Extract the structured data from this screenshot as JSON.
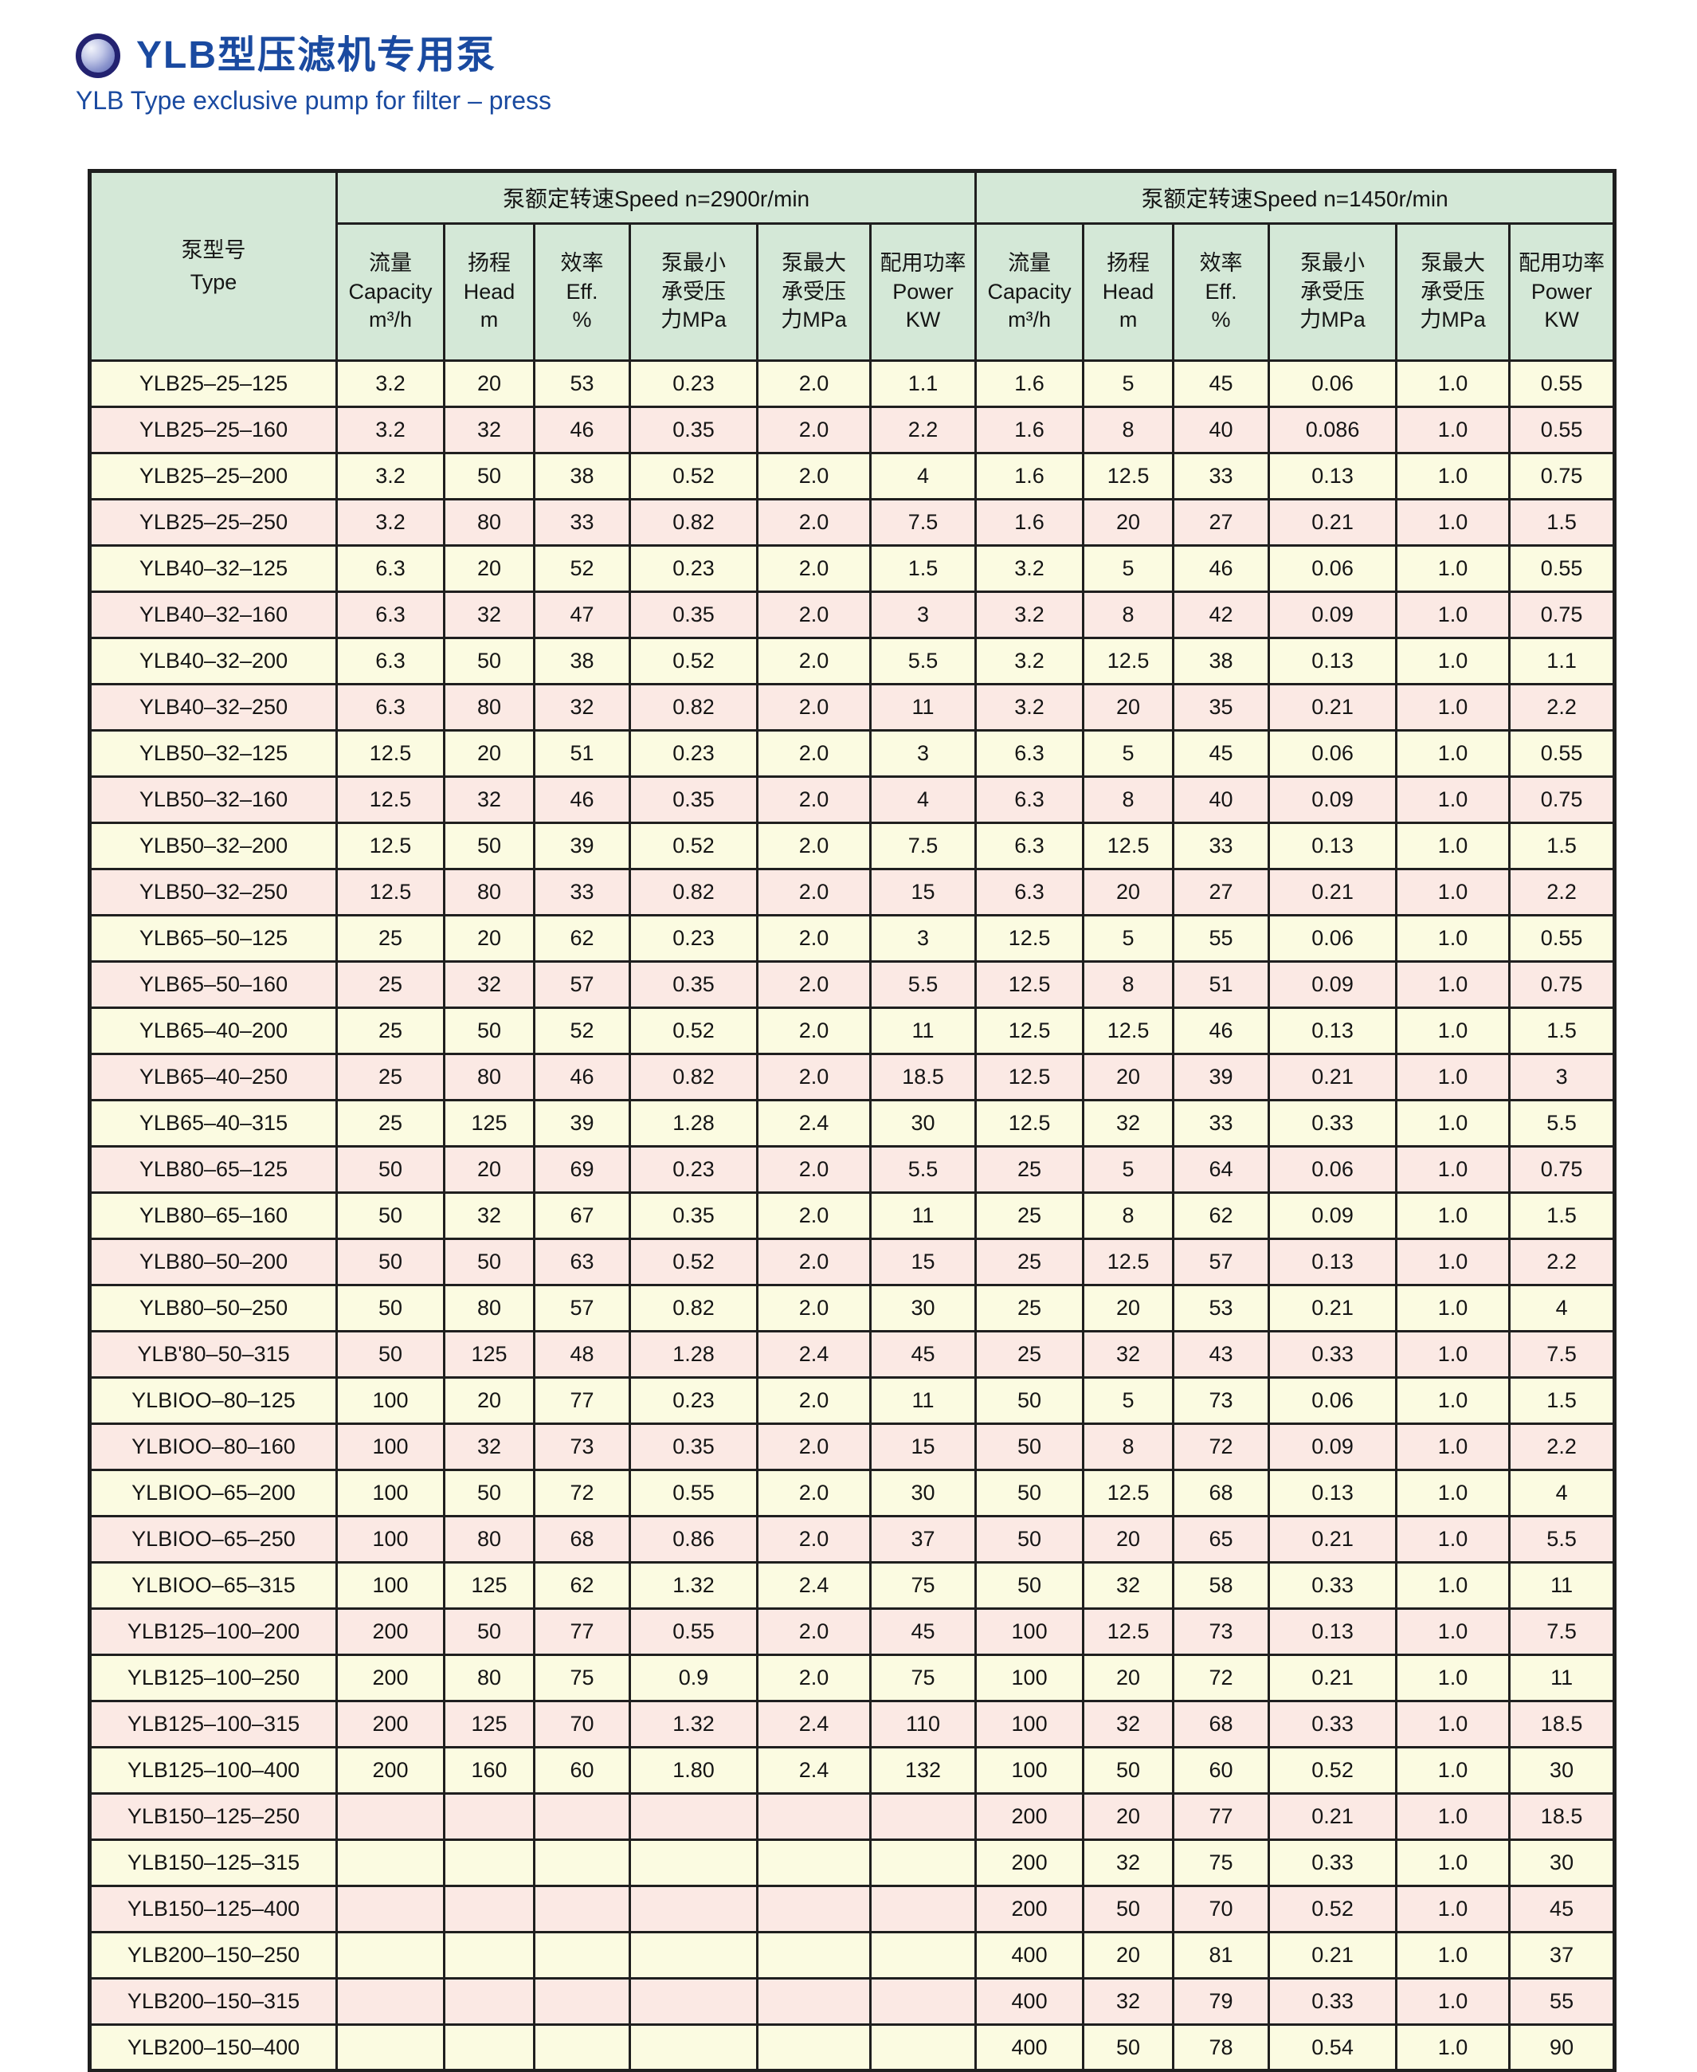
{
  "header": {
    "title_zh": "YLB型压滤机专用泵",
    "title_en": "YLB Type exclusive pump for filter – press"
  },
  "colors": {
    "title_blue": "#1a4aa0",
    "header_green": "#d4e8d7",
    "row_cream": "#fbfbe1",
    "row_pink": "#fbe9e4",
    "border_dark": "#1f1f1f",
    "text_ink": "#151515"
  },
  "table": {
    "type_header": {
      "zh": "泵型号",
      "en": "Type"
    },
    "speed_groups": [
      {
        "rpm": "2900",
        "label": "泵额定转速Speed n=2900r/min"
      },
      {
        "rpm": "1450",
        "label": "泵额定转速Speed n=1450r/min"
      }
    ],
    "columns": [
      {
        "key": "capacity",
        "lines": [
          "流量",
          "Capacity",
          "m³/h"
        ]
      },
      {
        "key": "head",
        "lines": [
          "扬程",
          "Head",
          "m"
        ]
      },
      {
        "key": "efficiency",
        "lines": [
          "效率",
          "Eff.",
          "%"
        ]
      },
      {
        "key": "min-pressure",
        "lines": [
          "泵最小",
          "承受压",
          "力MPa"
        ]
      },
      {
        "key": "max-pressure",
        "lines": [
          "泵最大",
          "承受压",
          "力MPa"
        ]
      },
      {
        "key": "power",
        "lines": [
          "配用功率",
          "Power",
          "KW"
        ]
      }
    ],
    "rows": [
      {
        "type": "YLB25–25–125",
        "n2900": [
          "3.2",
          "20",
          "53",
          "0.23",
          "2.0",
          "1.1"
        ],
        "n1450": [
          "1.6",
          "5",
          "45",
          "0.06",
          "1.0",
          "0.55"
        ]
      },
      {
        "type": "YLB25–25–160",
        "n2900": [
          "3.2",
          "32",
          "46",
          "0.35",
          "2.0",
          "2.2"
        ],
        "n1450": [
          "1.6",
          "8",
          "40",
          "0.086",
          "1.0",
          "0.55"
        ]
      },
      {
        "type": "YLB25–25–200",
        "n2900": [
          "3.2",
          "50",
          "38",
          "0.52",
          "2.0",
          "4"
        ],
        "n1450": [
          "1.6",
          "12.5",
          "33",
          "0.13",
          "1.0",
          "0.75"
        ]
      },
      {
        "type": "YLB25–25–250",
        "n2900": [
          "3.2",
          "80",
          "33",
          "0.82",
          "2.0",
          "7.5"
        ],
        "n1450": [
          "1.6",
          "20",
          "27",
          "0.21",
          "1.0",
          "1.5"
        ]
      },
      {
        "type": "YLB40–32–125",
        "n2900": [
          "6.3",
          "20",
          "52",
          "0.23",
          "2.0",
          "1.5"
        ],
        "n1450": [
          "3.2",
          "5",
          "46",
          "0.06",
          "1.0",
          "0.55"
        ]
      },
      {
        "type": "YLB40–32–160",
        "n2900": [
          "6.3",
          "32",
          "47",
          "0.35",
          "2.0",
          "3"
        ],
        "n1450": [
          "3.2",
          "8",
          "42",
          "0.09",
          "1.0",
          "0.75"
        ]
      },
      {
        "type": "YLB40–32–200",
        "n2900": [
          "6.3",
          "50",
          "38",
          "0.52",
          "2.0",
          "5.5"
        ],
        "n1450": [
          "3.2",
          "12.5",
          "38",
          "0.13",
          "1.0",
          "1.1"
        ]
      },
      {
        "type": "YLB40–32–250",
        "n2900": [
          "6.3",
          "80",
          "32",
          "0.82",
          "2.0",
          "11"
        ],
        "n1450": [
          "3.2",
          "20",
          "35",
          "0.21",
          "1.0",
          "2.2"
        ]
      },
      {
        "type": "YLB50–32–125",
        "n2900": [
          "12.5",
          "20",
          "51",
          "0.23",
          "2.0",
          "3"
        ],
        "n1450": [
          "6.3",
          "5",
          "45",
          "0.06",
          "1.0",
          "0.55"
        ]
      },
      {
        "type": "YLB50–32–160",
        "n2900": [
          "12.5",
          "32",
          "46",
          "0.35",
          "2.0",
          "4"
        ],
        "n1450": [
          "6.3",
          "8",
          "40",
          "0.09",
          "1.0",
          "0.75"
        ]
      },
      {
        "type": "YLB50–32–200",
        "n2900": [
          "12.5",
          "50",
          "39",
          "0.52",
          "2.0",
          "7.5"
        ],
        "n1450": [
          "6.3",
          "12.5",
          "33",
          "0.13",
          "1.0",
          "1.5"
        ]
      },
      {
        "type": "YLB50–32–250",
        "n2900": [
          "12.5",
          "80",
          "33",
          "0.82",
          "2.0",
          "15"
        ],
        "n1450": [
          "6.3",
          "20",
          "27",
          "0.21",
          "1.0",
          "2.2"
        ]
      },
      {
        "type": "YLB65–50–125",
        "n2900": [
          "25",
          "20",
          "62",
          "0.23",
          "2.0",
          "3"
        ],
        "n1450": [
          "12.5",
          "5",
          "55",
          "0.06",
          "1.0",
          "0.55"
        ]
      },
      {
        "type": "YLB65–50–160",
        "n2900": [
          "25",
          "32",
          "57",
          "0.35",
          "2.0",
          "5.5"
        ],
        "n1450": [
          "12.5",
          "8",
          "51",
          "0.09",
          "1.0",
          "0.75"
        ]
      },
      {
        "type": "YLB65–40–200",
        "n2900": [
          "25",
          "50",
          "52",
          "0.52",
          "2.0",
          "11"
        ],
        "n1450": [
          "12.5",
          "12.5",
          "46",
          "0.13",
          "1.0",
          "1.5"
        ]
      },
      {
        "type": "YLB65–40–250",
        "n2900": [
          "25",
          "80",
          "46",
          "0.82",
          "2.0",
          "18.5"
        ],
        "n1450": [
          "12.5",
          "20",
          "39",
          "0.21",
          "1.0",
          "3"
        ]
      },
      {
        "type": "YLB65–40–315",
        "n2900": [
          "25",
          "125",
          "39",
          "1.28",
          "2.4",
          "30"
        ],
        "n1450": [
          "12.5",
          "32",
          "33",
          "0.33",
          "1.0",
          "5.5"
        ]
      },
      {
        "type": "YLB80–65–125",
        "n2900": [
          "50",
          "20",
          "69",
          "0.23",
          "2.0",
          "5.5"
        ],
        "n1450": [
          "25",
          "5",
          "64",
          "0.06",
          "1.0",
          "0.75"
        ]
      },
      {
        "type": "YLB80–65–160",
        "n2900": [
          "50",
          "32",
          "67",
          "0.35",
          "2.0",
          "11"
        ],
        "n1450": [
          "25",
          "8",
          "62",
          "0.09",
          "1.0",
          "1.5"
        ]
      },
      {
        "type": "YLB80–50–200",
        "n2900": [
          "50",
          "50",
          "63",
          "0.52",
          "2.0",
          "15"
        ],
        "n1450": [
          "25",
          "12.5",
          "57",
          "0.13",
          "1.0",
          "2.2"
        ]
      },
      {
        "type": "YLB80–50–250",
        "n2900": [
          "50",
          "80",
          "57",
          "0.82",
          "2.0",
          "30"
        ],
        "n1450": [
          "25",
          "20",
          "53",
          "0.21",
          "1.0",
          "4"
        ]
      },
      {
        "type": "YLB'80–50–315",
        "n2900": [
          "50",
          "125",
          "48",
          "1.28",
          "2.4",
          "45"
        ],
        "n1450": [
          "25",
          "32",
          "43",
          "0.33",
          "1.0",
          "7.5"
        ]
      },
      {
        "type": "YLBIOO–80–125",
        "n2900": [
          "100",
          "20",
          "77",
          "0.23",
          "2.0",
          "11"
        ],
        "n1450": [
          "50",
          "5",
          "73",
          "0.06",
          "1.0",
          "1.5"
        ]
      },
      {
        "type": "YLBIOO–80–160",
        "n2900": [
          "100",
          "32",
          "73",
          "0.35",
          "2.0",
          "15"
        ],
        "n1450": [
          "50",
          "8",
          "72",
          "0.09",
          "1.0",
          "2.2"
        ]
      },
      {
        "type": "YLBIOO–65–200",
        "n2900": [
          "100",
          "50",
          "72",
          "0.55",
          "2.0",
          "30"
        ],
        "n1450": [
          "50",
          "12.5",
          "68",
          "0.13",
          "1.0",
          "4"
        ]
      },
      {
        "type": "YLBIOO–65–250",
        "n2900": [
          "100",
          "80",
          "68",
          "0.86",
          "2.0",
          "37"
        ],
        "n1450": [
          "50",
          "20",
          "65",
          "0.21",
          "1.0",
          "5.5"
        ]
      },
      {
        "type": "YLBIOO–65–315",
        "n2900": [
          "100",
          "125",
          "62",
          "1.32",
          "2.4",
          "75"
        ],
        "n1450": [
          "50",
          "32",
          "58",
          "0.33",
          "1.0",
          "11"
        ]
      },
      {
        "type": "YLB125–100–200",
        "n2900": [
          "200",
          "50",
          "77",
          "0.55",
          "2.0",
          "45"
        ],
        "n1450": [
          "100",
          "12.5",
          "73",
          "0.13",
          "1.0",
          "7.5"
        ]
      },
      {
        "type": "YLB125–100–250",
        "n2900": [
          "200",
          "80",
          "75",
          "0.9",
          "2.0",
          "75"
        ],
        "n1450": [
          "100",
          "20",
          "72",
          "0.21",
          "1.0",
          "11"
        ]
      },
      {
        "type": "YLB125–100–315",
        "n2900": [
          "200",
          "125",
          "70",
          "1.32",
          "2.4",
          "110"
        ],
        "n1450": [
          "100",
          "32",
          "68",
          "0.33",
          "1.0",
          "18.5"
        ]
      },
      {
        "type": "YLB125–100–400",
        "n2900": [
          "200",
          "160",
          "60",
          "1.80",
          "2.4",
          "132"
        ],
        "n1450": [
          "100",
          "50",
          "60",
          "0.52",
          "1.0",
          "30"
        ]
      },
      {
        "type": "YLB150–125–250",
        "n2900": [
          "",
          "",
          "",
          "",
          "",
          ""
        ],
        "n1450": [
          "200",
          "20",
          "77",
          "0.21",
          "1.0",
          "18.5"
        ]
      },
      {
        "type": "YLB150–125–315",
        "n2900": [
          "",
          "",
          "",
          "",
          "",
          ""
        ],
        "n1450": [
          "200",
          "32",
          "75",
          "0.33",
          "1.0",
          "30"
        ]
      },
      {
        "type": "YLB150–125–400",
        "n2900": [
          "",
          "",
          "",
          "",
          "",
          ""
        ],
        "n1450": [
          "200",
          "50",
          "70",
          "0.52",
          "1.0",
          "45"
        ]
      },
      {
        "type": "YLB200–150–250",
        "n2900": [
          "",
          "",
          "",
          "",
          "",
          ""
        ],
        "n1450": [
          "400",
          "20",
          "81",
          "0.21",
          "1.0",
          "37"
        ]
      },
      {
        "type": "YLB200–150–315",
        "n2900": [
          "",
          "",
          "",
          "",
          "",
          ""
        ],
        "n1450": [
          "400",
          "32",
          "79",
          "0.33",
          "1.0",
          "55"
        ]
      },
      {
        "type": "YLB200–150–400",
        "n2900": [
          "",
          "",
          "",
          "",
          "",
          ""
        ],
        "n1450": [
          "400",
          "50",
          "78",
          "0.54",
          "1.0",
          "90"
        ]
      }
    ]
  }
}
